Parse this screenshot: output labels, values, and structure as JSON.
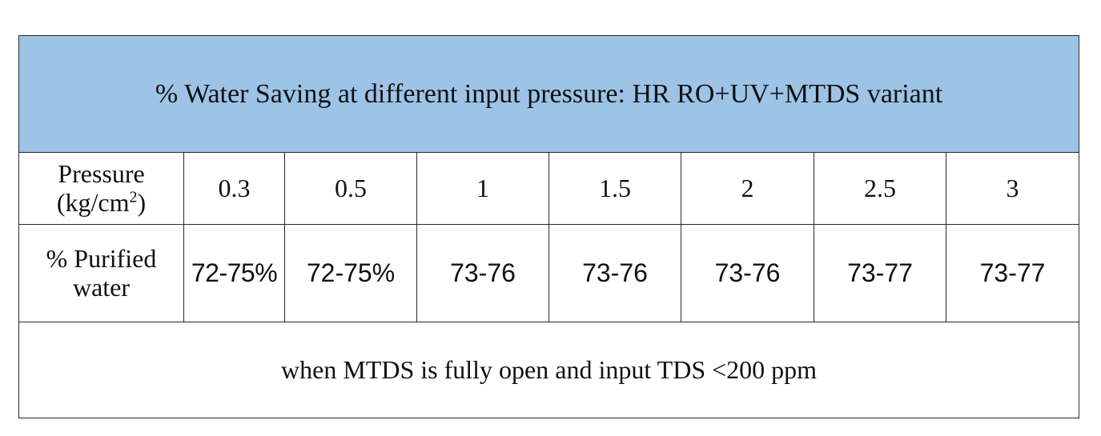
{
  "table": {
    "title": "% Water Saving at different input pressure: HR RO+UV+MTDS variant",
    "pressure_row": {
      "label_line1": "Pressure",
      "label_unit_prefix": "(kg/cm",
      "label_unit_sup": "2",
      "label_unit_suffix": ")",
      "values": [
        "0.3",
        "0.5",
        "1",
        "1.5",
        "2",
        "2.5",
        "3"
      ]
    },
    "purified_row": {
      "label_line1": "% Purified",
      "label_line2": "water",
      "values": [
        "72-75%",
        "72-75%",
        "73-76",
        "73-76",
        "73-76",
        "73-77",
        "73-77"
      ]
    },
    "note": "when MTDS is fully open and input TDS <200 ppm"
  }
}
